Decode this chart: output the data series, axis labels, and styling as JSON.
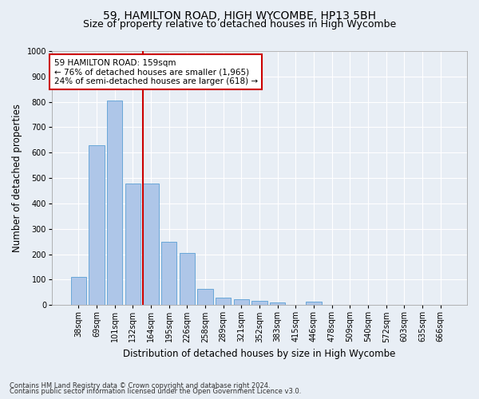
{
  "title_line1": "59, HAMILTON ROAD, HIGH WYCOMBE, HP13 5BH",
  "title_line2": "Size of property relative to detached houses in High Wycombe",
  "xlabel": "Distribution of detached houses by size in High Wycombe",
  "ylabel": "Number of detached properties",
  "footer_line1": "Contains HM Land Registry data © Crown copyright and database right 2024.",
  "footer_line2": "Contains public sector information licensed under the Open Government Licence v3.0.",
  "bar_labels": [
    "38sqm",
    "69sqm",
    "101sqm",
    "132sqm",
    "164sqm",
    "195sqm",
    "226sqm",
    "258sqm",
    "289sqm",
    "321sqm",
    "352sqm",
    "383sqm",
    "415sqm",
    "446sqm",
    "478sqm",
    "509sqm",
    "540sqm",
    "572sqm",
    "603sqm",
    "635sqm",
    "666sqm"
  ],
  "bar_values": [
    110,
    630,
    805,
    478,
    478,
    250,
    205,
    62,
    30,
    22,
    15,
    10,
    0,
    12,
    0,
    0,
    0,
    0,
    0,
    0,
    0
  ],
  "bar_color": "#aec6e8",
  "bar_edge_color": "#5a9fd4",
  "vline_color": "#cc0000",
  "vline_position": 3.57,
  "annotation_text": "59 HAMILTON ROAD: 159sqm\n← 76% of detached houses are smaller (1,965)\n24% of semi-detached houses are larger (618) →",
  "annotation_box_color": "#ffffff",
  "annotation_box_edge": "#cc0000",
  "ylim": [
    0,
    1000
  ],
  "yticks": [
    0,
    100,
    200,
    300,
    400,
    500,
    600,
    700,
    800,
    900,
    1000
  ],
  "background_color": "#e8eef5",
  "plot_bg_color": "#e8eef5",
  "grid_color": "#ffffff",
  "title_fontsize": 10,
  "subtitle_fontsize": 9,
  "axis_label_fontsize": 8.5,
  "tick_fontsize": 7,
  "annotation_fontsize": 7.5,
  "footer_fontsize": 6
}
